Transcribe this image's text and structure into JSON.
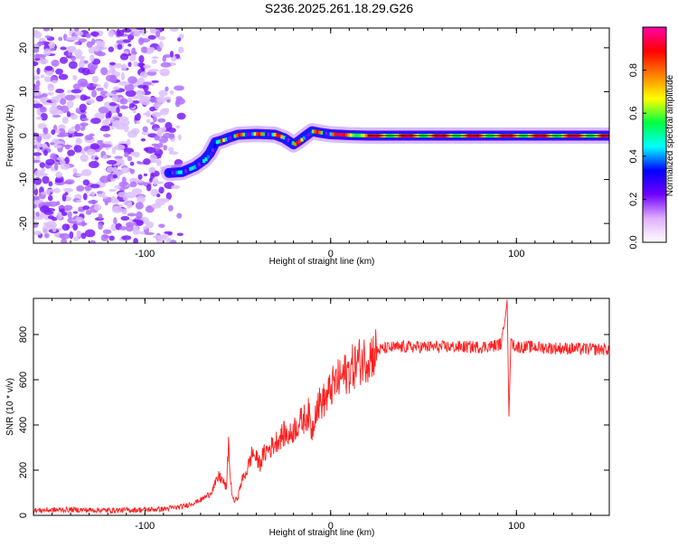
{
  "title": "S236.2025.261.18.29.G26",
  "chart_data": [
    {
      "type": "heatmap",
      "xlabel": "Height of straight line (km)",
      "ylabel": "Frequency (Hz)",
      "xlim": [
        -160,
        150
      ],
      "ylim": [
        -24.5,
        24.5
      ],
      "xticks": [
        -100,
        0,
        100
      ],
      "yticks": [
        -20,
        -10,
        0,
        10,
        20
      ],
      "colorbar": {
        "label": "Normalized spectral amplitude",
        "range": [
          0,
          1
        ],
        "ticks": [
          0.0,
          0.2,
          0.4,
          0.6,
          0.8
        ],
        "colors": [
          "#ffffff",
          "#e0b0ff",
          "#7000ff",
          "#0000ff",
          "#00ffff",
          "#00ff40",
          "#ffff00",
          "#ff8000",
          "#ff0000",
          "#ff00aa"
        ]
      },
      "ridge": {
        "x": [
          -87,
          -80,
          -73,
          -68,
          -65,
          -62,
          -58,
          -55,
          -50,
          -45,
          -40,
          -35,
          -30,
          -25,
          -20,
          -17,
          -14,
          -10,
          -5,
          0,
          10,
          20,
          40,
          60,
          80,
          90,
          100,
          120,
          150
        ],
        "freq": [
          -8.5,
          -8.3,
          -7,
          -5.5,
          -4,
          -1.5,
          -1,
          -0.5,
          0.2,
          0.3,
          0.4,
          0.3,
          0.2,
          -0.6,
          -2,
          -1.2,
          -0.2,
          1,
          0.6,
          0.3,
          0.1,
          0,
          0,
          0,
          0,
          0,
          0,
          0,
          0
        ]
      }
    },
    {
      "type": "line",
      "xlabel": "Height of straight line (km)",
      "ylabel": "SNR (10 * v/v)",
      "xlim": [
        -160,
        150
      ],
      "ylim": [
        0,
        960
      ],
      "xticks": [
        -100,
        0,
        100
      ],
      "yticks": [
        0,
        200,
        400,
        600,
        800
      ],
      "color": "#ff0000",
      "series": [
        {
          "name": "SNR",
          "x": [
            -160,
            -140,
            -120,
            -100,
            -90,
            -80,
            -75,
            -70,
            -65,
            -62,
            -60,
            -58,
            -56,
            -55,
            -54,
            -53,
            -52,
            -50,
            -48,
            -45,
            -42,
            -40,
            -38,
            -36,
            -34,
            -32,
            -30,
            -28,
            -25,
            -22,
            -20,
            -18,
            -15,
            -12,
            -10,
            -8,
            -5,
            -2,
            0,
            3,
            6,
            10,
            15,
            20,
            25,
            30,
            40,
            50,
            60,
            70,
            80,
            88,
            92,
            94,
            95,
            96,
            97,
            98,
            100,
            110,
            120,
            130,
            140,
            150
          ],
          "y": [
            22,
            25,
            22,
            25,
            28,
            38,
            52,
            68,
            95,
            140,
            175,
            150,
            120,
            330,
            160,
            90,
            60,
            80,
            150,
            200,
            280,
            250,
            230,
            270,
            290,
            300,
            320,
            340,
            360,
            350,
            380,
            400,
            420,
            450,
            370,
            480,
            500,
            520,
            560,
            590,
            610,
            640,
            680,
            700,
            730,
            740,
            745,
            745,
            745,
            745,
            745,
            750,
            760,
            880,
            960,
            430,
            790,
            760,
            745,
            745,
            740,
            738,
            735,
            735
          ]
        }
      ]
    }
  ]
}
